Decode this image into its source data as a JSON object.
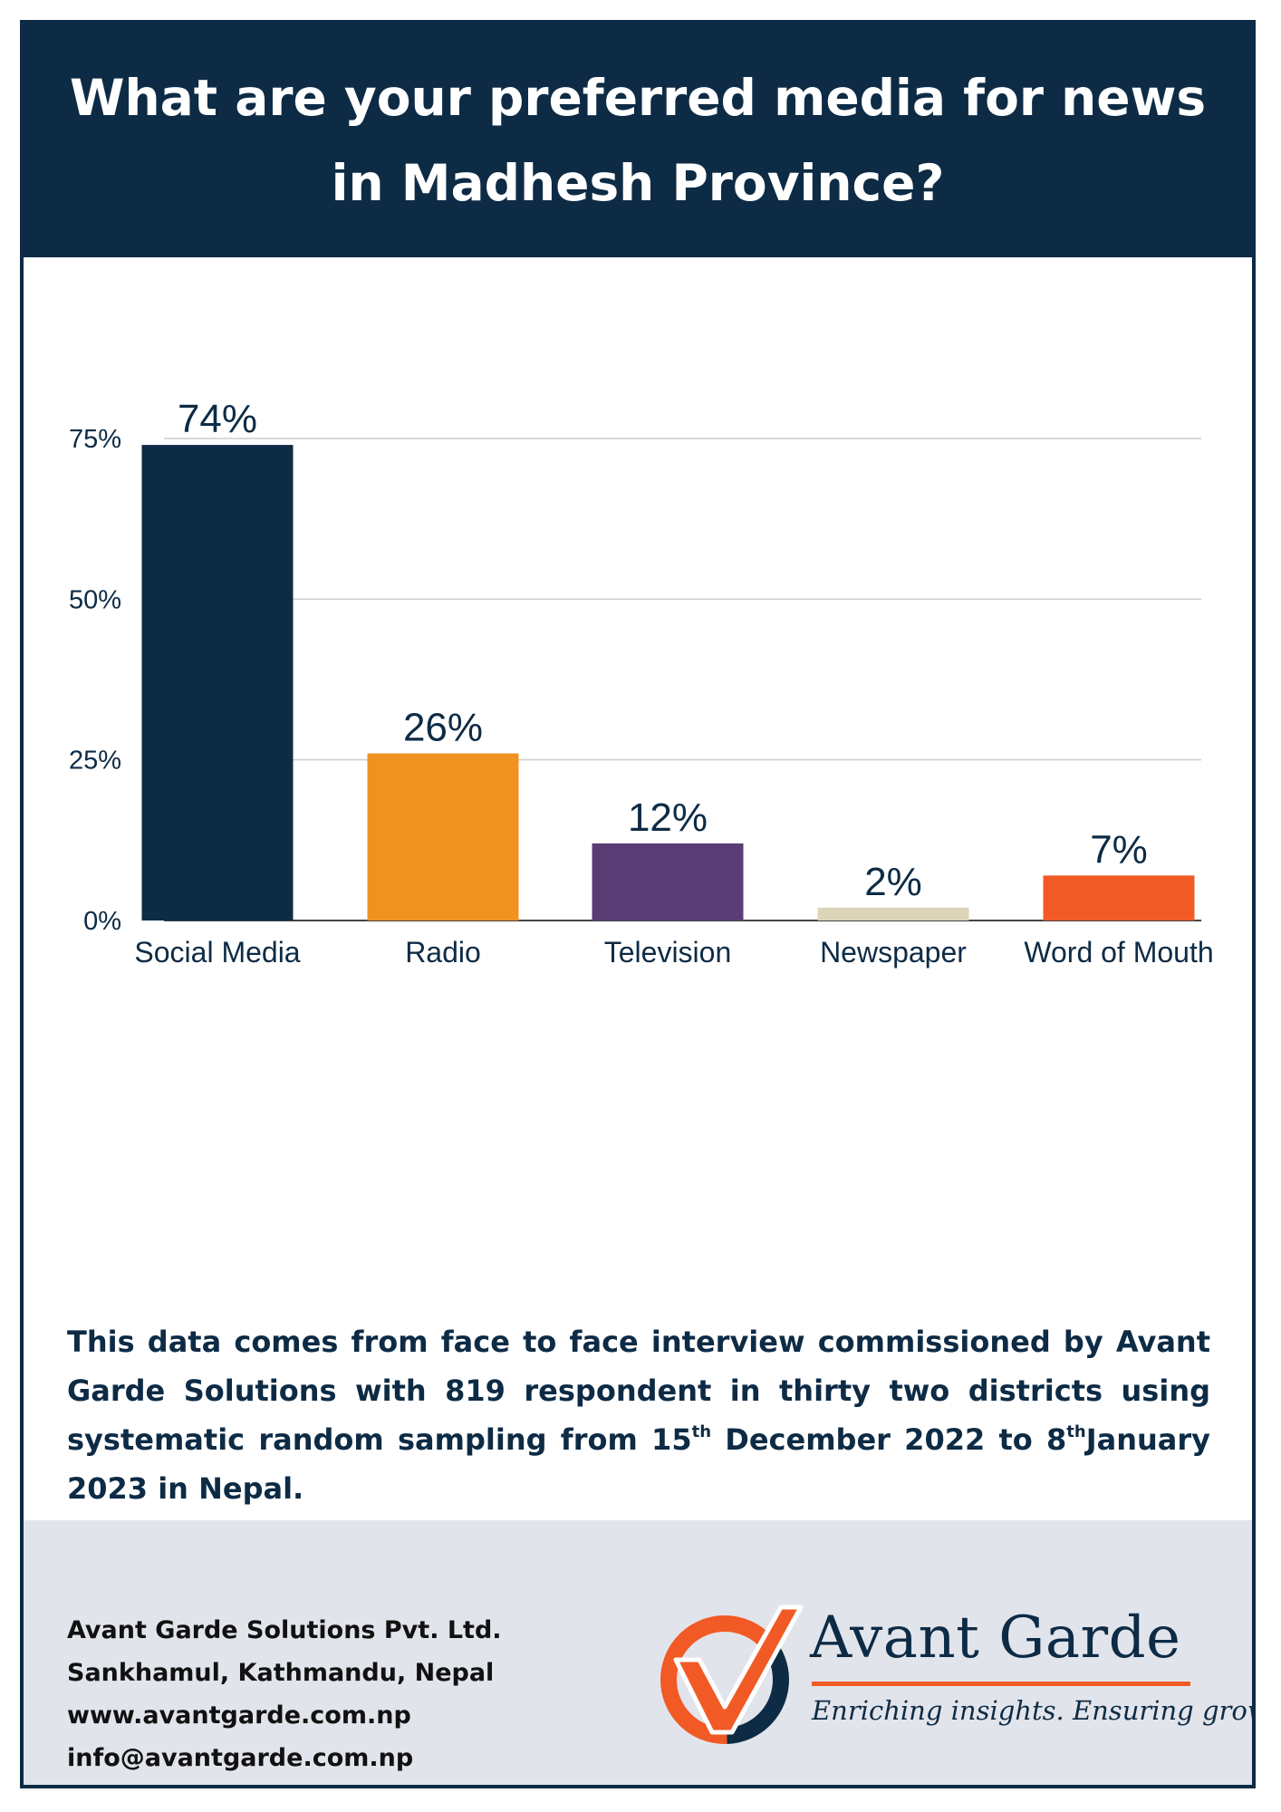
{
  "header": {
    "title": "What are your preferred media for news in Madhesh Province?"
  },
  "chart_data": {
    "type": "bar",
    "categories": [
      "Social Media",
      "Radio",
      "Television",
      "Newspaper",
      "Word of Mouth"
    ],
    "values": [
      74,
      26,
      12,
      2,
      7
    ],
    "data_labels": [
      "74%",
      "26%",
      "12%",
      "2%",
      "7%"
    ],
    "colors": [
      "#0d2b45",
      "#f0921f",
      "#5b3d75",
      "#ddd5b9",
      "#f15a24"
    ],
    "yticks": [
      {
        "value": 0,
        "label": "0%"
      },
      {
        "value": 25,
        "label": "25%"
      },
      {
        "value": 50,
        "label": "50%"
      },
      {
        "value": 75,
        "label": "75%"
      }
    ],
    "ylim": [
      0,
      75
    ],
    "grid": true,
    "legend": false
  },
  "note": {
    "part1": "This data comes from face to face interview commissioned by Avant Garde Solutions with 819 respondent in thirty two districts using systematic random sampling from 15",
    "sup1": "th",
    "part2": " December 2022 to 8",
    "sup2": "th",
    "part3": "January 2023 in Nepal."
  },
  "footer": {
    "company": "Avant Garde Solutions Pvt. Ltd.",
    "address": "Sankhamul, Kathmandu, Nepal",
    "website": "www.avantgarde.com.np",
    "email": "info@avantgarde.com.np"
  },
  "logo": {
    "name": "Avant Garde",
    "tagline": "Enriching insights. Ensuring growth.",
    "icon": "check-mark-circle-icon",
    "colors": {
      "navy": "#0d2b45",
      "orange": "#f15a24"
    }
  }
}
